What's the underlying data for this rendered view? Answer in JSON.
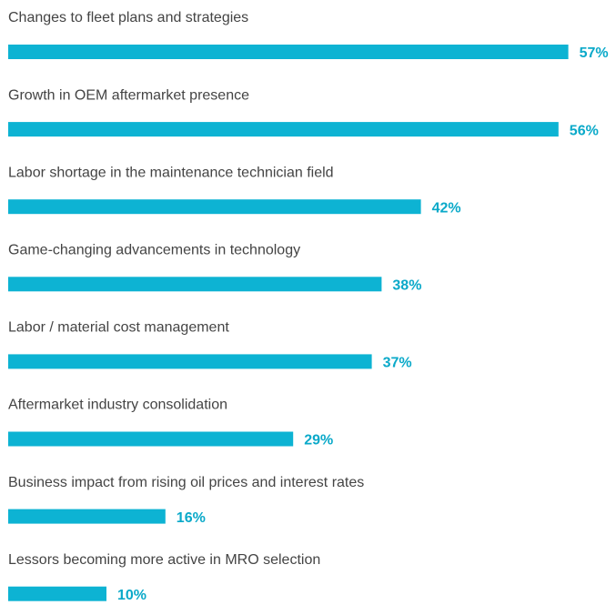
{
  "chart_data": {
    "type": "bar",
    "orientation": "horizontal",
    "color": "#0db3d3",
    "categories": [
      "Changes to fleet plans and strategies",
      "Growth in OEM aftermarket presence",
      "Labor shortage in the maintenance technician field",
      "Game-changing advancements in technology",
      "Labor / material cost management",
      "Aftermarket industry consolidation",
      "Business impact from rising oil prices and interest rates",
      "Lessors becoming more active in MRO selection"
    ],
    "values": [
      57,
      56,
      42,
      38,
      37,
      29,
      16,
      10
    ],
    "value_labels": [
      "57%",
      "56%",
      "42%",
      "38%",
      "37%",
      "29%",
      "16%",
      "10%"
    ]
  }
}
